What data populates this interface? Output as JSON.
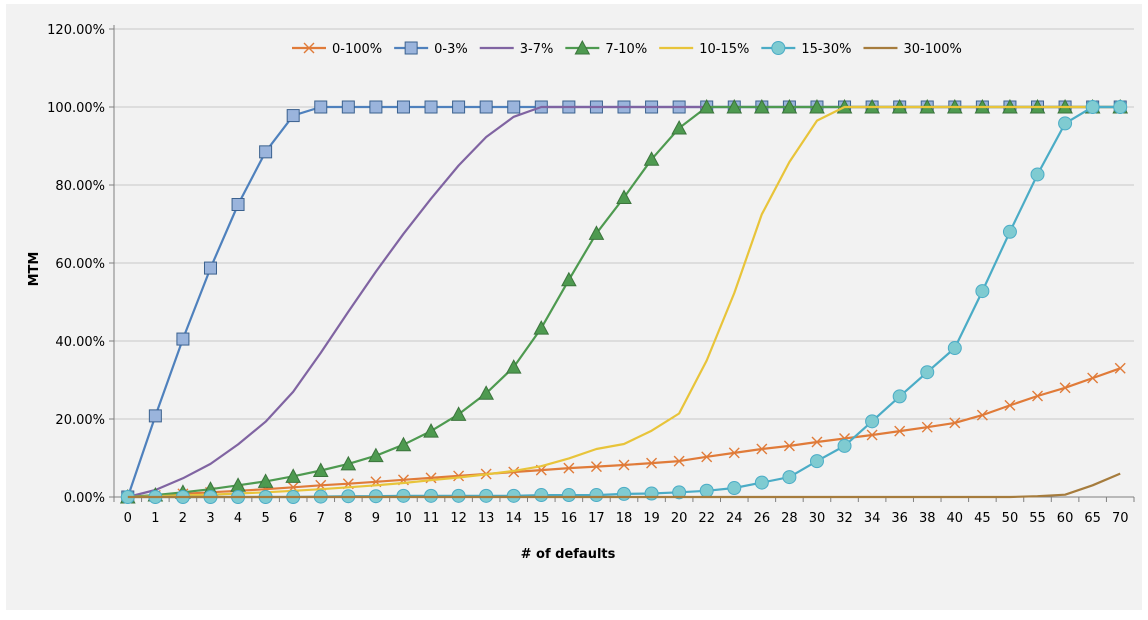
{
  "chart_data": {
    "type": "line",
    "title": "",
    "xlabel": "# of defaults",
    "ylabel": "MTM",
    "ylim": [
      0,
      120
    ],
    "yticks": [
      "0.00%",
      "20.00%",
      "40.00%",
      "60.00%",
      "80.00%",
      "100.00%",
      "120.00%"
    ],
    "grid": "horizontal",
    "legend_position": "top",
    "categories": [
      "0",
      "1",
      "2",
      "3",
      "4",
      "5",
      "6",
      "7",
      "8",
      "9",
      "10",
      "11",
      "12",
      "13",
      "14",
      "15",
      "16",
      "17",
      "18",
      "19",
      "20",
      "22",
      "24",
      "26",
      "28",
      "30",
      "32",
      "34",
      "36",
      "38",
      "40",
      "45",
      "50",
      "55",
      "60",
      "65",
      "70"
    ],
    "series": [
      {
        "name": "0-100%",
        "color": "#e07b39",
        "marker": "x",
        "values": [
          0,
          0.4,
          0.8,
          1.2,
          1.6,
          2.0,
          2.5,
          3.0,
          3.4,
          3.9,
          4.4,
          4.9,
          5.4,
          5.9,
          6.4,
          6.9,
          7.4,
          7.8,
          8.2,
          8.7,
          9.2,
          10.3,
          11.3,
          12.3,
          13.1,
          14.1,
          15.0,
          15.9,
          16.9,
          17.9,
          19.0,
          21.0,
          23.5,
          25.9,
          28.0,
          30.5,
          33.0
        ]
      },
      {
        "name": "0-3%",
        "color": "#4f81bd",
        "marker": "square",
        "values": [
          0,
          20.8,
          40.5,
          58.7,
          75.0,
          88.5,
          97.8,
          100,
          100,
          100,
          100,
          100,
          100,
          100,
          100,
          100,
          100,
          100,
          100,
          100,
          100,
          100,
          100,
          100,
          100,
          100,
          100,
          100,
          100,
          100,
          100,
          100,
          100,
          100,
          100,
          100,
          100
        ]
      },
      {
        "name": "3-7%",
        "color": "#8064a2",
        "marker": "none",
        "values": [
          0,
          1.8,
          4.8,
          8.5,
          13.5,
          19.3,
          27.0,
          37.0,
          47.5,
          57.8,
          67.5,
          76.5,
          85.0,
          92.3,
          97.5,
          100,
          100,
          100,
          100,
          100,
          100,
          100,
          100,
          100,
          100,
          100,
          100,
          100,
          100,
          100,
          100,
          100,
          100,
          100,
          100,
          100,
          100
        ]
      },
      {
        "name": "7-10%",
        "color": "#4e9a50",
        "marker": "triangle",
        "values": [
          0,
          0.5,
          1.2,
          2.0,
          3.0,
          4.0,
          5.3,
          6.8,
          8.5,
          10.6,
          13.4,
          16.9,
          21.2,
          26.6,
          33.3,
          43.3,
          55.7,
          67.6,
          76.8,
          86.6,
          94.6,
          100,
          100,
          100,
          100,
          100,
          100,
          100,
          100,
          100,
          100,
          100,
          100,
          100,
          100,
          100,
          100
        ]
      },
      {
        "name": "10-15%",
        "color": "#e8c43a",
        "marker": "none",
        "values": [
          0,
          0.2,
          0.4,
          0.6,
          0.9,
          1.2,
          1.6,
          2.0,
          2.5,
          3.0,
          3.6,
          4.3,
          5.0,
          5.8,
          6.7,
          7.9,
          9.9,
          12.3,
          13.6,
          17.0,
          21.4,
          35.0,
          52.3,
          72.5,
          85.9,
          96.5,
          100,
          100,
          100,
          100,
          100,
          100,
          100,
          100,
          100,
          100,
          100
        ]
      },
      {
        "name": "15-30%",
        "color": "#4bacc6",
        "marker": "circle",
        "values": [
          0,
          0,
          0,
          0,
          0,
          0,
          0,
          0.1,
          0.2,
          0.2,
          0.3,
          0.3,
          0.3,
          0.3,
          0.3,
          0.5,
          0.5,
          0.5,
          0.8,
          0.9,
          1.2,
          1.6,
          2.3,
          3.7,
          5.1,
          9.2,
          13.1,
          19.4,
          25.8,
          32.0,
          38.2,
          52.8,
          68.0,
          82.7,
          95.8,
          100,
          100
        ]
      },
      {
        "name": "30-100%",
        "color": "#a67c3d",
        "marker": "none",
        "values": [
          0,
          0,
          0,
          0,
          0,
          0,
          0,
          0,
          0,
          0,
          0,
          0,
          0,
          0,
          0,
          0,
          0,
          0,
          0,
          0,
          0,
          0,
          0,
          0,
          0,
          0,
          0,
          0,
          0,
          0,
          0,
          0,
          0,
          0.2,
          0.6,
          3.0,
          6.0
        ]
      }
    ]
  }
}
